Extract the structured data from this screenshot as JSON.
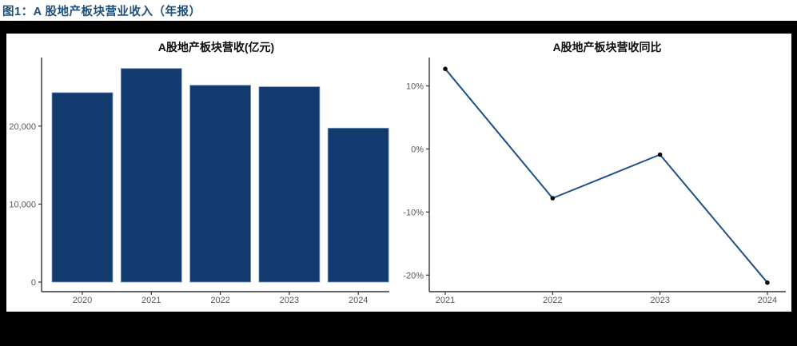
{
  "header": {
    "title": "图1：A 股地产板块营业收入（年报）",
    "color": "#1F4E79"
  },
  "colors": {
    "frame": "#000000",
    "panel_bg": "#FFFFFF",
    "bar": "#123A6E",
    "bar_edge": "#7F9DC0",
    "line": "#1C4F8C",
    "point": "#0A0A0A",
    "axis": "#333333",
    "tick_label": "#575757"
  },
  "chart_data": [
    {
      "type": "bar",
      "title": "A股地产板块营收(亿元)",
      "categories": [
        "2020",
        "2021",
        "2022",
        "2023",
        "2024"
      ],
      "values": [
        24300,
        27400,
        25250,
        25050,
        19750
      ],
      "yticks": [
        {
          "label": "0",
          "value": 0
        },
        {
          "label": "10,000",
          "value": 10000
        },
        {
          "label": "20,000",
          "value": 20000
        }
      ],
      "ylim": [
        0,
        28800
      ],
      "xlabel": "",
      "ylabel": "",
      "grid": false,
      "legend": "none"
    },
    {
      "type": "line",
      "title": "A股地产板块营收同比",
      "categories": [
        "2021",
        "2022",
        "2023",
        "2024"
      ],
      "values": [
        12.7,
        -7.8,
        -0.9,
        -21.2
      ],
      "yticks": [
        {
          "label": "10%",
          "value": 10
        },
        {
          "label": "0%",
          "value": 0
        },
        {
          "label": "-10%",
          "value": -10
        },
        {
          "label": "-20%",
          "value": -20
        }
      ],
      "ylim": [
        -22.5,
        14.5
      ],
      "xlabel": "",
      "ylabel": "",
      "grid": false,
      "legend": "none"
    }
  ]
}
